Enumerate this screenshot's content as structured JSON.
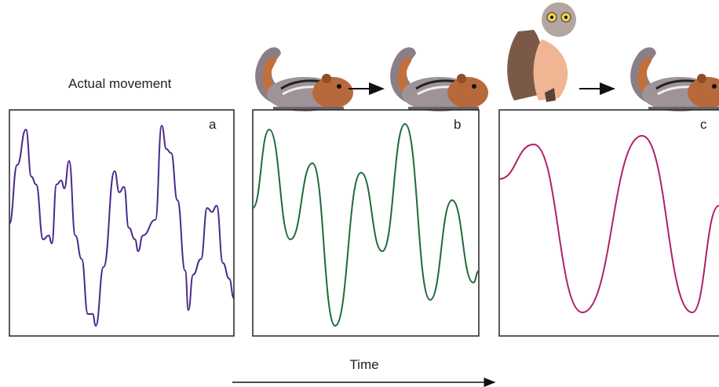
{
  "heading": "Actual movement",
  "panels": [
    {
      "label": "a"
    },
    {
      "label": "b"
    },
    {
      "label": "c"
    }
  ],
  "axis_label": "Time"
}
